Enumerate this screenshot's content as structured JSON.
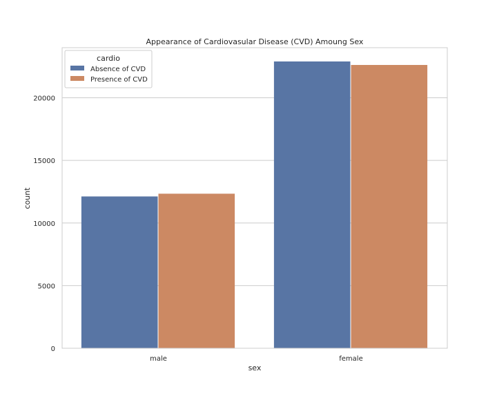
{
  "chart_data": {
    "type": "bar",
    "title": "Appearance of Cardiovasular Disease (CVD) Amoung Sex",
    "xlabel": "sex",
    "ylabel": "count",
    "categories": [
      "male",
      "female"
    ],
    "series": [
      {
        "name": "Absence of CVD",
        "values": [
          12120,
          22900
        ],
        "color": "#5875a4"
      },
      {
        "name": "Presence of CVD",
        "values": [
          12340,
          22620
        ],
        "color": "#cc8963"
      }
    ],
    "ylim": [
      0,
      24000
    ],
    "yticks": [
      0,
      5000,
      10000,
      15000,
      20000
    ],
    "ytick_labels": [
      "0",
      "5000",
      "10000",
      "15000",
      "20000"
    ],
    "grid": "horizontal",
    "legend": {
      "title": "cardio",
      "position": "top-left"
    },
    "colors": {
      "grid": "#cccccc",
      "frame": "#cccccc"
    }
  }
}
